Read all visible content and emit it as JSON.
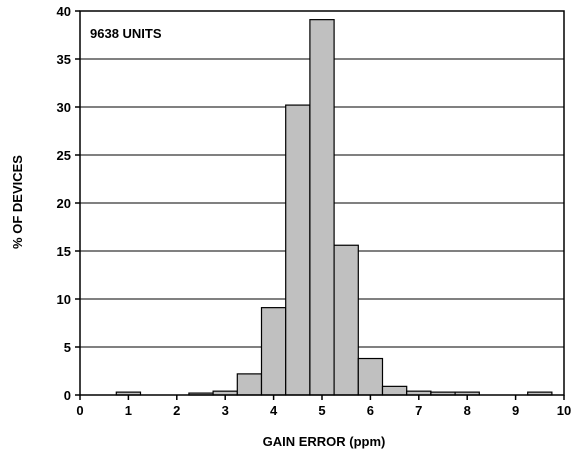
{
  "chart_data": {
    "type": "bar",
    "title": "",
    "annotation": "9638 UNITS",
    "xlabel": "GAIN ERROR (ppm)",
    "ylabel": "% OF DEVICES",
    "xlim": [
      0,
      10
    ],
    "ylim": [
      0,
      40
    ],
    "x_ticks": [
      "0",
      "1",
      "2",
      "3",
      "4",
      "5",
      "6",
      "7",
      "8",
      "9",
      "10"
    ],
    "y_ticks": [
      "0",
      "5",
      "10",
      "15",
      "20",
      "25",
      "30",
      "35",
      "40"
    ],
    "bin_width": 0.5,
    "bars": [
      {
        "x_start": 0.75,
        "value": 0.3
      },
      {
        "x_start": 2.25,
        "value": 0.2
      },
      {
        "x_start": 2.75,
        "value": 0.4
      },
      {
        "x_start": 3.25,
        "value": 2.2
      },
      {
        "x_start": 3.75,
        "value": 9.1
      },
      {
        "x_start": 4.25,
        "value": 30.2
      },
      {
        "x_start": 4.75,
        "value": 39.1
      },
      {
        "x_start": 5.25,
        "value": 15.6
      },
      {
        "x_start": 5.75,
        "value": 3.8
      },
      {
        "x_start": 6.25,
        "value": 0.9
      },
      {
        "x_start": 6.75,
        "value": 0.4
      },
      {
        "x_start": 7.25,
        "value": 0.3
      },
      {
        "x_start": 7.75,
        "value": 0.3
      },
      {
        "x_start": 9.25,
        "value": 0.3
      }
    ],
    "grid": "horizontal",
    "bar_fill": "#c0c0c0",
    "bar_stroke": "#000000"
  }
}
